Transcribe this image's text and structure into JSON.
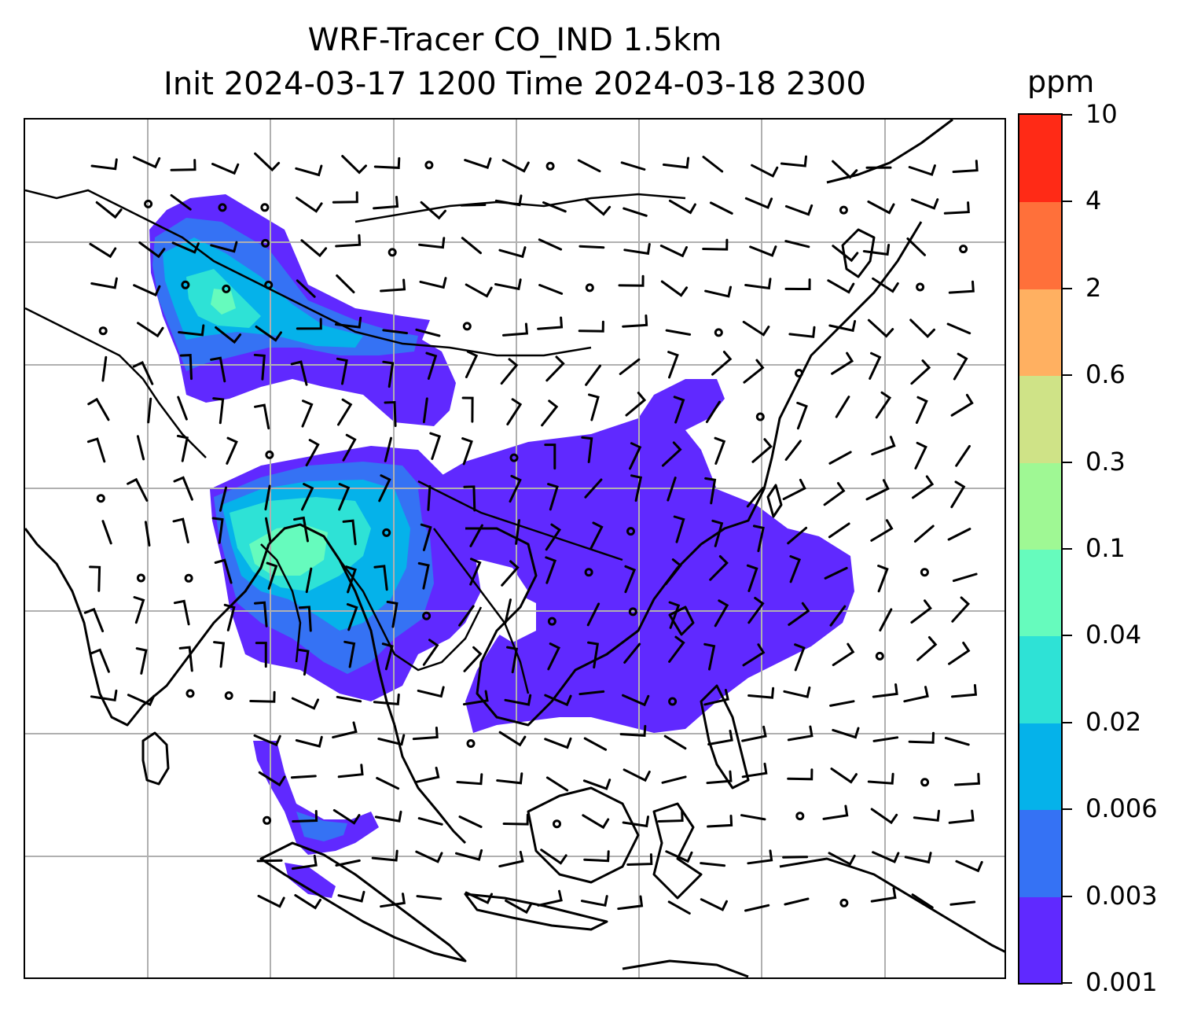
{
  "title": {
    "line1": "WRF-Tracer CO_IND 1.5km",
    "line2": "Init 2024-03-17 1200 Time 2024-03-18 2300"
  },
  "colorbar": {
    "unit": "ppm",
    "levels": [
      "0.001",
      "0.003",
      "0.006",
      "0.02",
      "0.04",
      "0.1",
      "0.3",
      "0.6",
      "2",
      "4",
      "10"
    ],
    "colors": [
      "#6029ff",
      "#3572f4",
      "#05b2ea",
      "#2ee2d6",
      "#66fbbd",
      "#9ff894",
      "#cfe387",
      "#ffb061",
      "#ff703a",
      "#ff2a16"
    ]
  },
  "map": {
    "gridlines": true,
    "gridline_color": "#b0b0b0",
    "coastline_color": "#000000",
    "features": [
      "coastlines",
      "country-borders",
      "wind-barbs",
      "calm-wind-circles"
    ]
  }
}
